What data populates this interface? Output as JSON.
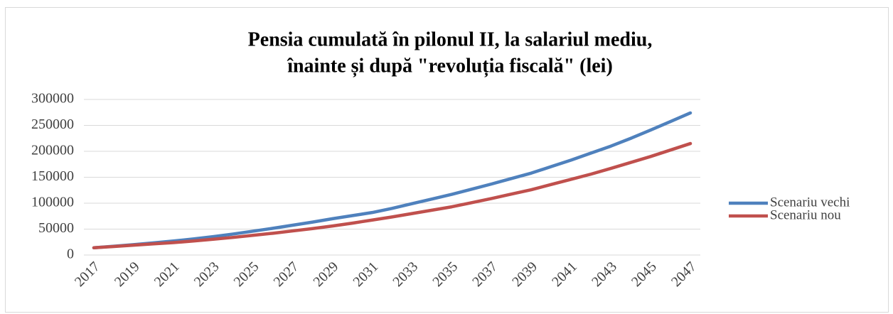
{
  "chart_data": {
    "type": "line",
    "title": [
      "Pensia cumulată în pilonul II, la salariul mediu,",
      "înainte și după \"revoluția fiscală\" (lei)"
    ],
    "categories": [
      "2017",
      null,
      "2019",
      null,
      "2021",
      null,
      "2023",
      null,
      "2025",
      null,
      "2027",
      null,
      "2029",
      null,
      "2031",
      null,
      "2033",
      null,
      "2035",
      null,
      "2037",
      null,
      "2039",
      null,
      "2041",
      null,
      "2043",
      null,
      "2045",
      null,
      "2047"
    ],
    "series": [
      {
        "name": "Scenariu vechi",
        "color": "#4f81bd",
        "values": [
          14000,
          17000,
          20000,
          23500,
          27000,
          31000,
          35500,
          40500,
          46000,
          51500,
          57500,
          63500,
          70000,
          76000,
          82000,
          90000,
          99000,
          108000,
          117000,
          127000,
          137000,
          147500,
          158000,
          170500,
          183000,
          196500,
          210000,
          225000,
          241000,
          257500,
          274000
        ]
      },
      {
        "name": "Scenariu nou",
        "color": "#c0504d",
        "values": [
          14000,
          16500,
          19000,
          21500,
          24000,
          27000,
          30500,
          34000,
          38000,
          42000,
          46500,
          51000,
          56000,
          61500,
          67500,
          73500,
          80000,
          86500,
          93000,
          101000,
          109000,
          117500,
          126000,
          136000,
          146000,
          156000,
          167000,
          178500,
          190000,
          202500,
          215000
        ]
      }
    ],
    "ylim": [
      0,
      300000
    ],
    "yticks": [
      0,
      50000,
      100000,
      150000,
      200000,
      250000,
      300000
    ],
    "grid": true,
    "legend": "right"
  }
}
